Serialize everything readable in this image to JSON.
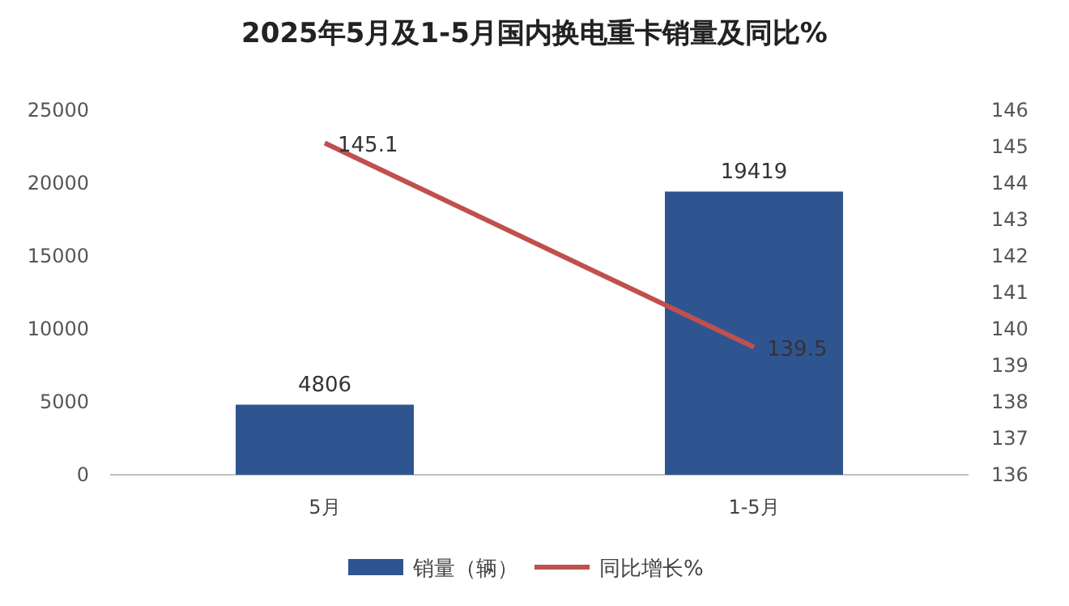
{
  "chart_data": {
    "type": "bar",
    "title": "2025年5月及1-5月国内换电重卡销量及同比%",
    "categories": [
      "5月",
      "1-5月"
    ],
    "series": [
      {
        "name": "销量（辆）",
        "color": "#2f5590",
        "values": [
          4806,
          19419
        ]
      },
      {
        "name": "同比增长%",
        "type": "line",
        "axis": "y2",
        "color": "#c0504d",
        "values": [
          145.1,
          139.5
        ]
      }
    ],
    "ylim": [
      0,
      25000
    ],
    "yticks": [
      0,
      5000,
      10000,
      15000,
      20000,
      25000
    ],
    "y2lim": [
      136,
      146
    ],
    "y2ticks": [
      136,
      137,
      138,
      139,
      140,
      141,
      142,
      143,
      144,
      145,
      146
    ],
    "data_labels": true,
    "legend": "bottom",
    "grid": false
  }
}
